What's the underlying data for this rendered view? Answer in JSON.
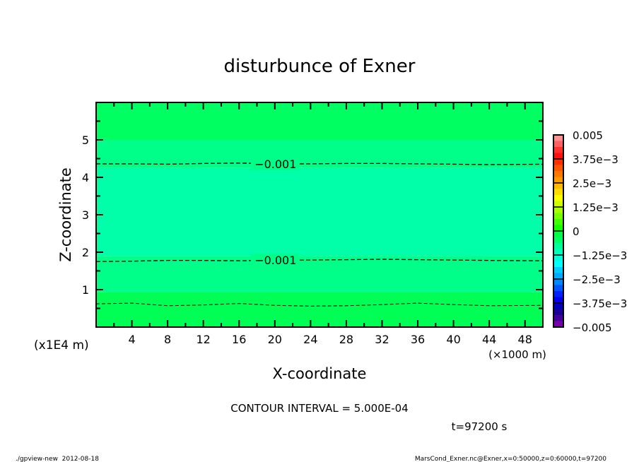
{
  "chart_data": {
    "type": "heatmap",
    "title": "disturbunce of Exner",
    "xlabel": "X-coordinate",
    "ylabel": "Z-coordinate",
    "x_unit": "(×1000 m)",
    "y_unit": "(x1E4 m)",
    "xlim": [
      0,
      50
    ],
    "ylim": [
      0,
      6
    ],
    "x_ticks": [
      4,
      8,
      12,
      16,
      20,
      24,
      28,
      32,
      36,
      40,
      44,
      48
    ],
    "y_ticks": [
      1,
      2,
      3,
      4,
      5
    ],
    "bands": [
      {
        "z_from": 0,
        "z_to": 0.93,
        "color": "#00ff55"
      },
      {
        "z_from": 0.93,
        "z_to": 1.9,
        "color": "#00ff88"
      },
      {
        "z_from": 1.9,
        "z_to": 4.25,
        "color": "#00ffa8"
      },
      {
        "z_from": 4.25,
        "z_to": 5.0,
        "color": "#00ff88"
      },
      {
        "z_from": 5.0,
        "z_to": 6,
        "color": "#00ff60"
      }
    ],
    "contours": [
      {
        "level": -0.001,
        "label": "-0.001",
        "z": [
          4.36,
          4.36,
          4.35,
          4.37,
          4.38,
          4.36,
          4.36,
          4.37,
          4.37,
          4.36,
          4.35,
          4.34,
          4.35
        ],
        "label_x": 20
      },
      {
        "level": -0.001,
        "label": "-0.001",
        "z": [
          1.75,
          1.76,
          1.78,
          1.78,
          1.77,
          1.79,
          1.79,
          1.8,
          1.81,
          1.8,
          1.79,
          1.78,
          1.77
        ],
        "label_x": 20
      },
      {
        "level": -0.0005,
        "label": "",
        "z": [
          0.62,
          0.64,
          0.57,
          0.59,
          0.63,
          0.58,
          0.56,
          0.57,
          0.6,
          0.64,
          0.6,
          0.57,
          0.58
        ],
        "label_x": null
      }
    ],
    "contour_x": [
      0,
      4,
      8,
      12,
      16,
      20,
      24,
      28,
      32,
      36,
      40,
      44,
      50
    ],
    "colorbar": {
      "labels": [
        "0.005",
        "3.75e-3",
        "2.5e-3",
        "1.25e-3",
        "0",
        "-1.25e-3",
        "-2.5e-3",
        "-3.75e-3",
        "-0.005"
      ],
      "colors": [
        "#ff9090",
        "#ff6060",
        "#ff3030",
        "#ff1010",
        "#ff3000",
        "#ff5500",
        "#ff7700",
        "#ff9900",
        "#ffbb00",
        "#ffdd00",
        "#ffff00",
        "#ccff00",
        "#aaff00",
        "#77ff00",
        "#44ff00",
        "#11ff00",
        "#00ff44",
        "#00ff66",
        "#00ff99",
        "#00ffbb",
        "#00ffdd",
        "#00ffff",
        "#00ccff",
        "#00aaff",
        "#0088ff",
        "#0055ff",
        "#0022ff",
        "#0000ee",
        "#0000bb",
        "#1a0099",
        "#440099",
        "#7700aa"
      ]
    }
  },
  "annotations": {
    "contour_interval": "CONTOUR INTERVAL = 5.000E-04",
    "time": "t=97200 s",
    "footer_left": "./gpview-new  2012-08-18",
    "footer_right": "MarsCond_Exner.nc@Exner,x=0:50000,z=0:60000,t=97200"
  }
}
